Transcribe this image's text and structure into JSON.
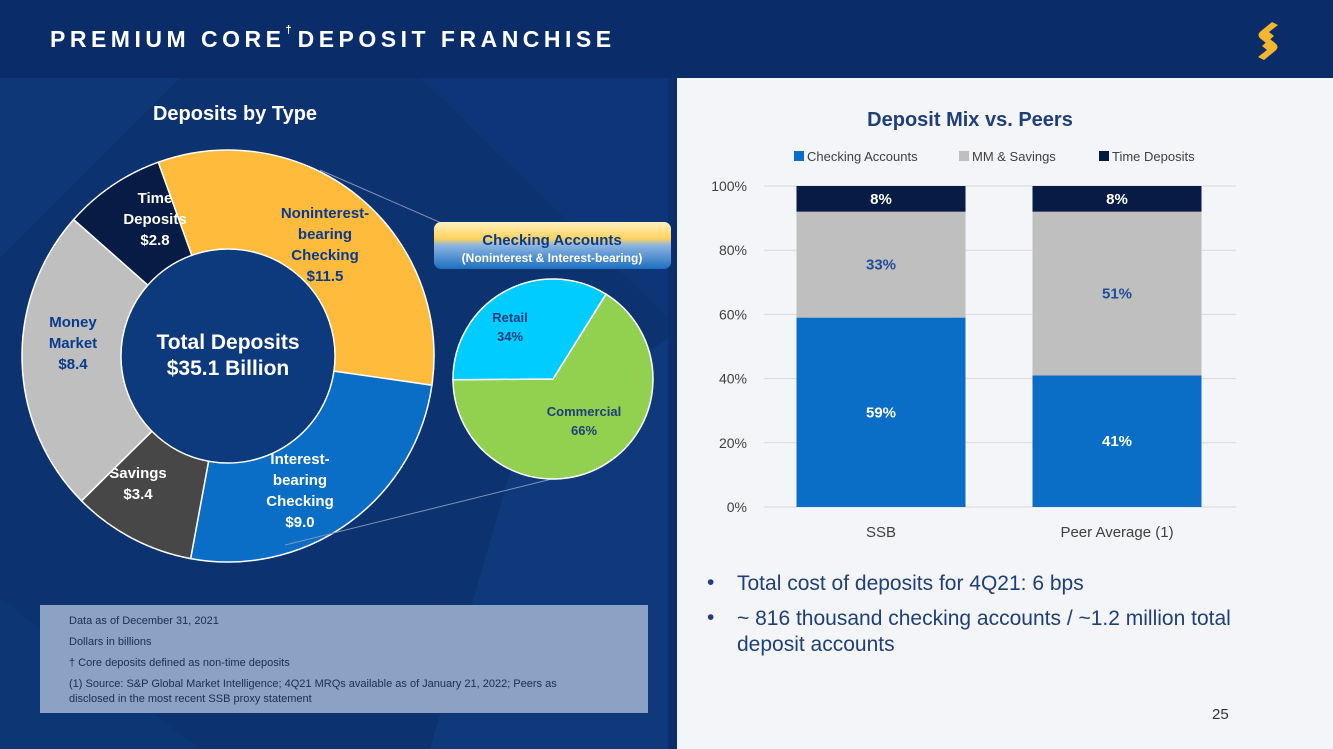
{
  "header": {
    "title_main": "PREMIUM CORE",
    "title_dagger": "†",
    "title_rest": "DEPOSIT FRANCHISE"
  },
  "page_number": "25",
  "colors": {
    "header_bg": "#0a2d6a",
    "checking_blue": "#0a6ec6",
    "mm_savings_gray": "#bfbfbf",
    "time_navy": "#061c44",
    "noninterest_gold": "#ffbb3c",
    "savings_dark": "#474747",
    "retail_cyan": "#00ccff",
    "commercial_green": "#92d050"
  },
  "chart_data": [
    {
      "type": "pie",
      "variant": "donut",
      "title": "Deposits by Type",
      "center_label_line1": "Total Deposits",
      "center_label_line2": "$35.1 Billion",
      "units": "$ billions",
      "slices": [
        {
          "label": [
            "Noninterest-",
            "bearing",
            "Checking"
          ],
          "value_label": "$11.5",
          "value": 11.5,
          "color": "#ffbb3c",
          "text_color": "#0a3a8c"
        },
        {
          "label": [
            "Interest-",
            "bearing",
            "Checking"
          ],
          "value_label": "$9.0",
          "value": 9.0,
          "color": "#0a6ec6",
          "text_color": "#ffffff"
        },
        {
          "label": [
            "Savings"
          ],
          "value_label": "$3.4",
          "value": 3.4,
          "color": "#474747",
          "text_color": "#ffffff"
        },
        {
          "label": [
            "Money",
            "Market"
          ],
          "value_label": "$8.4",
          "value": 8.4,
          "color": "#bfbfbf",
          "text_color": "#0a3a8c"
        },
        {
          "label": [
            "Time",
            "Deposits"
          ],
          "value_label": "$2.8",
          "value": 2.8,
          "color": "#061c44",
          "text_color": "#ffffff"
        }
      ]
    },
    {
      "type": "pie",
      "title": "Checking Accounts",
      "subtitle": "(Noninterest & Interest-bearing)",
      "slices": [
        {
          "label": "Commercial",
          "value_label": "66%",
          "value": 66,
          "color": "#92d050"
        },
        {
          "label": "Retail",
          "value_label": "34%",
          "value": 34,
          "color": "#00ccff"
        }
      ]
    },
    {
      "type": "bar",
      "stacked": true,
      "title": "Deposit Mix vs. Peers",
      "categories": [
        "SSB",
        "Peer Average (1)"
      ],
      "series": [
        {
          "name": "Checking Accounts",
          "values": [
            59,
            41
          ],
          "labels": [
            "59%",
            "41%"
          ],
          "color": "#0a6ec6",
          "label_color": "#ffffff"
        },
        {
          "name": "MM & Savings",
          "values": [
            33,
            51
          ],
          "labels": [
            "33%",
            "51%"
          ],
          "color": "#bfbfbf",
          "label_color": "#1f4e96"
        },
        {
          "name": "Time Deposits",
          "values": [
            8,
            8
          ],
          "labels": [
            "8%",
            "8%"
          ],
          "color": "#061c44",
          "label_color": "#ffffff"
        }
      ],
      "ylim": [
        0,
        100
      ],
      "yticks": [
        "0%",
        "20%",
        "40%",
        "60%",
        "80%",
        "100%"
      ],
      "legend_position": "top",
      "grid": true
    }
  ],
  "footnotes": [
    "Data as of December 31, 2021",
    "Dollars in billions",
    "† Core deposits defined as non-time deposits",
    "(1) Source: S&P Global Market Intelligence; 4Q21 MRQs available as of January 21, 2022; Peers as",
    "disclosed in the most recent SSB proxy statement"
  ],
  "bullets": [
    {
      "marker": "•",
      "text": "Total cost of deposits for 4Q21: 6 bps"
    },
    {
      "marker": "•",
      "text": "~ 816 thousand checking accounts / ~1.2 million total deposit accounts"
    }
  ]
}
